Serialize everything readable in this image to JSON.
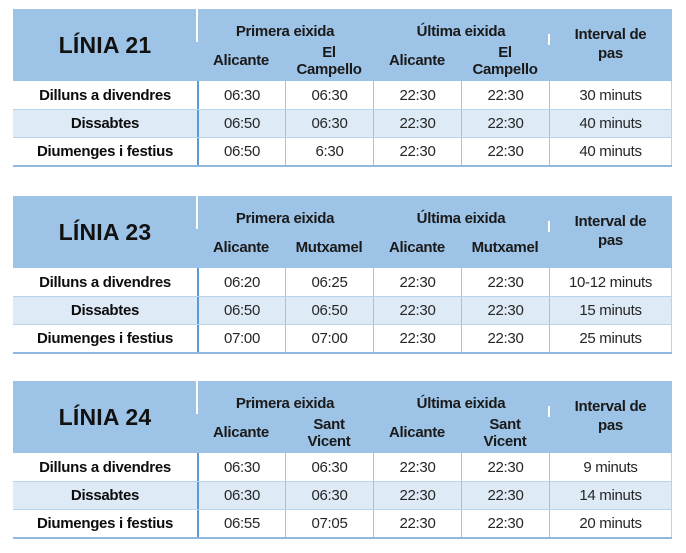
{
  "colors": {
    "header_bg": "#9DC3E6",
    "alt_row_bg": "#DEEBF7",
    "strong_divider": "#5B9BD5",
    "light_divider": "#9DC3E6",
    "row_divider": "#B8D3EC",
    "table_bottom_border": "#8FB8E0"
  },
  "tables": [
    {
      "title": "LÍNIA 21",
      "group_first": "Primera eixida",
      "group_last": "Última eixida",
      "interval_header": "Interval de pas",
      "stops": [
        "Alicante",
        "El Campello",
        "Alicante",
        "El Campello"
      ],
      "rows": [
        {
          "label": "Dilluns a divendres",
          "times": [
            "06:30",
            "06:30",
            "22:30",
            "22:30"
          ],
          "interval": "30 minuts"
        },
        {
          "label": "Dissabtes",
          "times": [
            "06:50",
            "06:30",
            "22:30",
            "22:30"
          ],
          "interval": "40 minuts"
        },
        {
          "label": "Diumenges i festius",
          "times": [
            "06:50",
            "6:30",
            "22:30",
            "22:30"
          ],
          "interval": "40 minuts"
        }
      ]
    },
    {
      "title": "LÍNIA 23",
      "group_first": "Primera eixida",
      "group_last": "Última eixida",
      "interval_header": "Interval de pas",
      "stops": [
        "Alicante",
        "Mutxamel",
        "Alicante",
        "Mutxamel"
      ],
      "rows": [
        {
          "label": "Dilluns a divendres",
          "times": [
            "06:20",
            "06:25",
            "22:30",
            "22:30"
          ],
          "interval": "10-12 minuts"
        },
        {
          "label": "Dissabtes",
          "times": [
            "06:50",
            "06:50",
            "22:30",
            "22:30"
          ],
          "interval": "15 minuts"
        },
        {
          "label": "Diumenges i festius",
          "times": [
            "07:00",
            "07:00",
            "22:30",
            "22:30"
          ],
          "interval": "25 minuts"
        }
      ]
    },
    {
      "title": "LÍNIA 24",
      "group_first": "Primera eixida",
      "group_last": "Última eixida",
      "interval_header": "Interval de pas",
      "stops": [
        "Alicante",
        "Sant Vicent",
        "Alicante",
        "Sant Vicent"
      ],
      "rows": [
        {
          "label": "Dilluns a divendres",
          "times": [
            "06:30",
            "06:30",
            "22:30",
            "22:30"
          ],
          "interval": "9 minuts"
        },
        {
          "label": "Dissabtes",
          "times": [
            "06:30",
            "06:30",
            "22:30",
            "22:30"
          ],
          "interval": "14 minuts"
        },
        {
          "label": "Diumenges i festius",
          "times": [
            "06:55",
            "07:05",
            "22:30",
            "22:30"
          ],
          "interval": "20 minuts"
        }
      ]
    }
  ]
}
